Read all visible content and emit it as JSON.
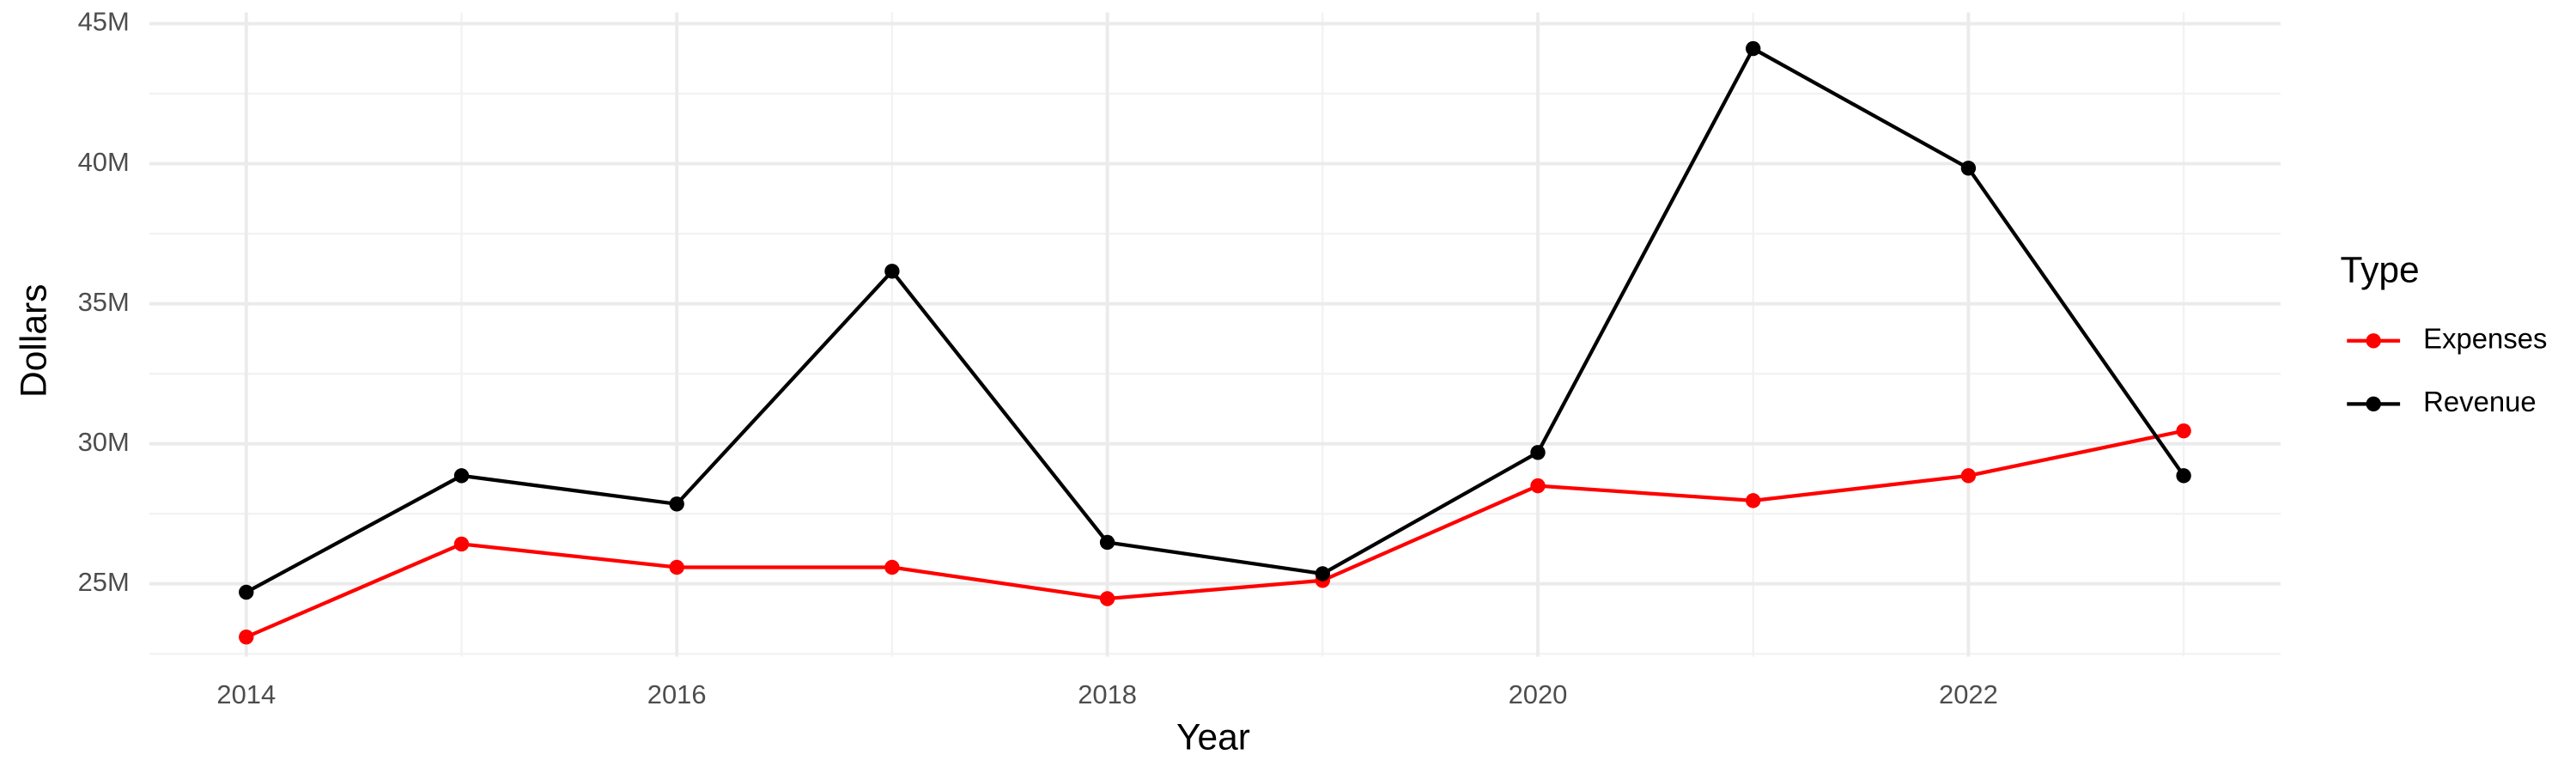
{
  "chart_data": {
    "type": "line",
    "x_label": "Year",
    "y_label": "Dollars",
    "legend_title": "Type",
    "x": [
      2014,
      2015,
      2016,
      2017,
      2018,
      2019,
      2020,
      2021,
      2022,
      2023
    ],
    "series": [
      {
        "name": "Expenses",
        "color": "#ff0000",
        "values": [
          23100000,
          26420000,
          25590000,
          25590000,
          24470000,
          25120000,
          28500000,
          27970000,
          28860000,
          30460000
        ]
      },
      {
        "name": "Revenue",
        "color": "#000000",
        "values": [
          24700000,
          28860000,
          27850000,
          36160000,
          26480000,
          25360000,
          29690000,
          44110000,
          39840000,
          28860000
        ]
      }
    ],
    "xlim": [
      2013.55,
      2023.45
    ],
    "xticks": [
      2014,
      2016,
      2018,
      2020,
      2022
    ],
    "ylim": [
      22400000,
      45400000
    ],
    "yticks": [
      {
        "value": 25000000,
        "label": "25M"
      },
      {
        "value": 30000000,
        "label": "30M"
      },
      {
        "value": 35000000,
        "label": "35M"
      },
      {
        "value": 40000000,
        "label": "40M"
      },
      {
        "value": 45000000,
        "label": "45M"
      }
    ],
    "grid": true,
    "legend_position": "right"
  }
}
